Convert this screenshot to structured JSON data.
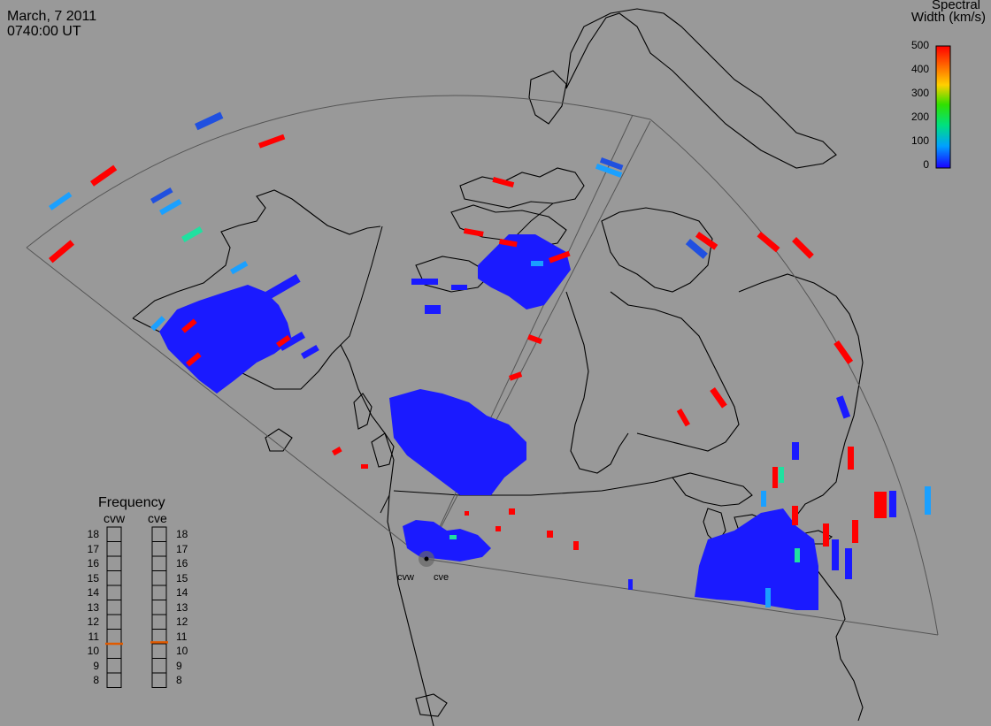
{
  "header": {
    "date": "March, 7 2011",
    "time": "0740:00 UT"
  },
  "colorbar": {
    "title_line1": "Spectral",
    "title_line2": "Width (km/s)",
    "min": 0,
    "max": 500,
    "ticks": [
      "500",
      "400",
      "300",
      "200",
      "100",
      "0"
    ]
  },
  "frequency_panel": {
    "title": "Frequency",
    "radars": [
      {
        "name": "cvw",
        "frequency_mhz": 10.5
      },
      {
        "name": "cve",
        "frequency_mhz": 10.6
      }
    ],
    "scale": [
      "18",
      "17",
      "16",
      "15",
      "14",
      "13",
      "12",
      "11",
      "10",
      "9",
      "8"
    ],
    "indicator_color": "#e05a00"
  },
  "radar_labels": {
    "west": "cvw",
    "east": "cve"
  },
  "colors": {
    "background": "#999999",
    "coastline": "#000000",
    "blue": "#1a1aff",
    "red": "#ff0000",
    "cyan": "#1aa0ff",
    "teal": "#20e0a0"
  }
}
